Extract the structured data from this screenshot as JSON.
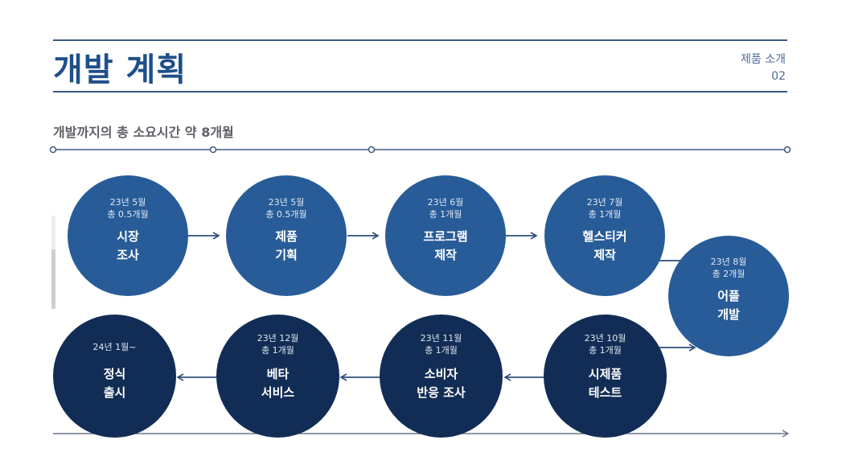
{
  "header": {
    "title": "개발 계획",
    "section_label": "제품 소개",
    "page_number": "02"
  },
  "subtitle": "개발까지의 총 소요시간 약 8개월",
  "colors": {
    "step_blue": "#285c98",
    "step_navy": "#122d55",
    "line": "#3b5a86",
    "title": "#1f4f8a"
  },
  "steps": [
    {
      "date": "23년 5월",
      "duration": "총 0.5개월",
      "name_line1": "시장",
      "name_line2": "조사"
    },
    {
      "date": "23년 5월",
      "duration": "총 0.5개월",
      "name_line1": "제품",
      "name_line2": "기획"
    },
    {
      "date": "23년 6월",
      "duration": "총 1개월",
      "name_line1": "프로그램",
      "name_line2": "제작"
    },
    {
      "date": "23년 7월",
      "duration": "총 1개월",
      "name_line1": "헬스티커",
      "name_line2": "제작"
    },
    {
      "date": "23년 8월",
      "duration": "총 2개월",
      "name_line1": "어플",
      "name_line2": "개발"
    },
    {
      "date": "23년 10월",
      "duration": "총 1개월",
      "name_line1": "시제품",
      "name_line2": "테스트"
    },
    {
      "date": "23년 11월",
      "duration": "총 1개월",
      "name_line1": "소비자",
      "name_line2": "반응 조사"
    },
    {
      "date": "23년 12월",
      "duration": "총 1개월",
      "name_line1": "베타",
      "name_line2": "서비스"
    },
    {
      "date": "24년 1월~",
      "duration": "",
      "name_line1": "정식",
      "name_line2": "출시"
    }
  ]
}
